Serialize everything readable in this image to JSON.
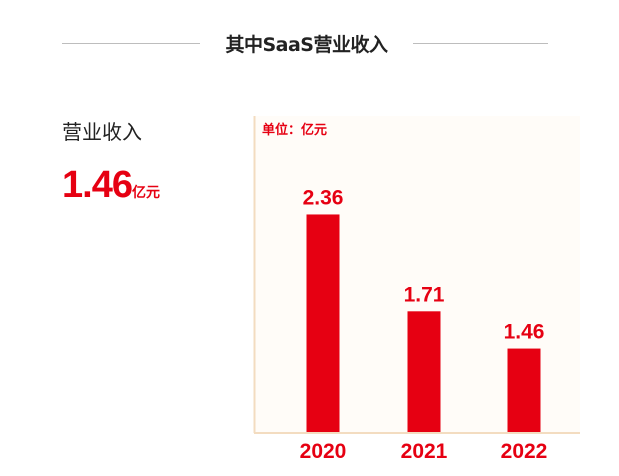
{
  "header": {
    "title": "其中SaaS营业收入"
  },
  "kpi": {
    "label": "营业收入",
    "value": "1.46",
    "unit": "亿元"
  },
  "chart_data": {
    "type": "bar",
    "unit_label": "单位：亿元",
    "categories": [
      "2020",
      "2021",
      "2022"
    ],
    "values": [
      2.36,
      1.71,
      1.46
    ],
    "data_labels": [
      "2.36",
      "1.71",
      "1.46"
    ],
    "bar_color": "#e60012",
    "axis_color": "#f3dcc0",
    "grid": false,
    "legend": "none"
  }
}
